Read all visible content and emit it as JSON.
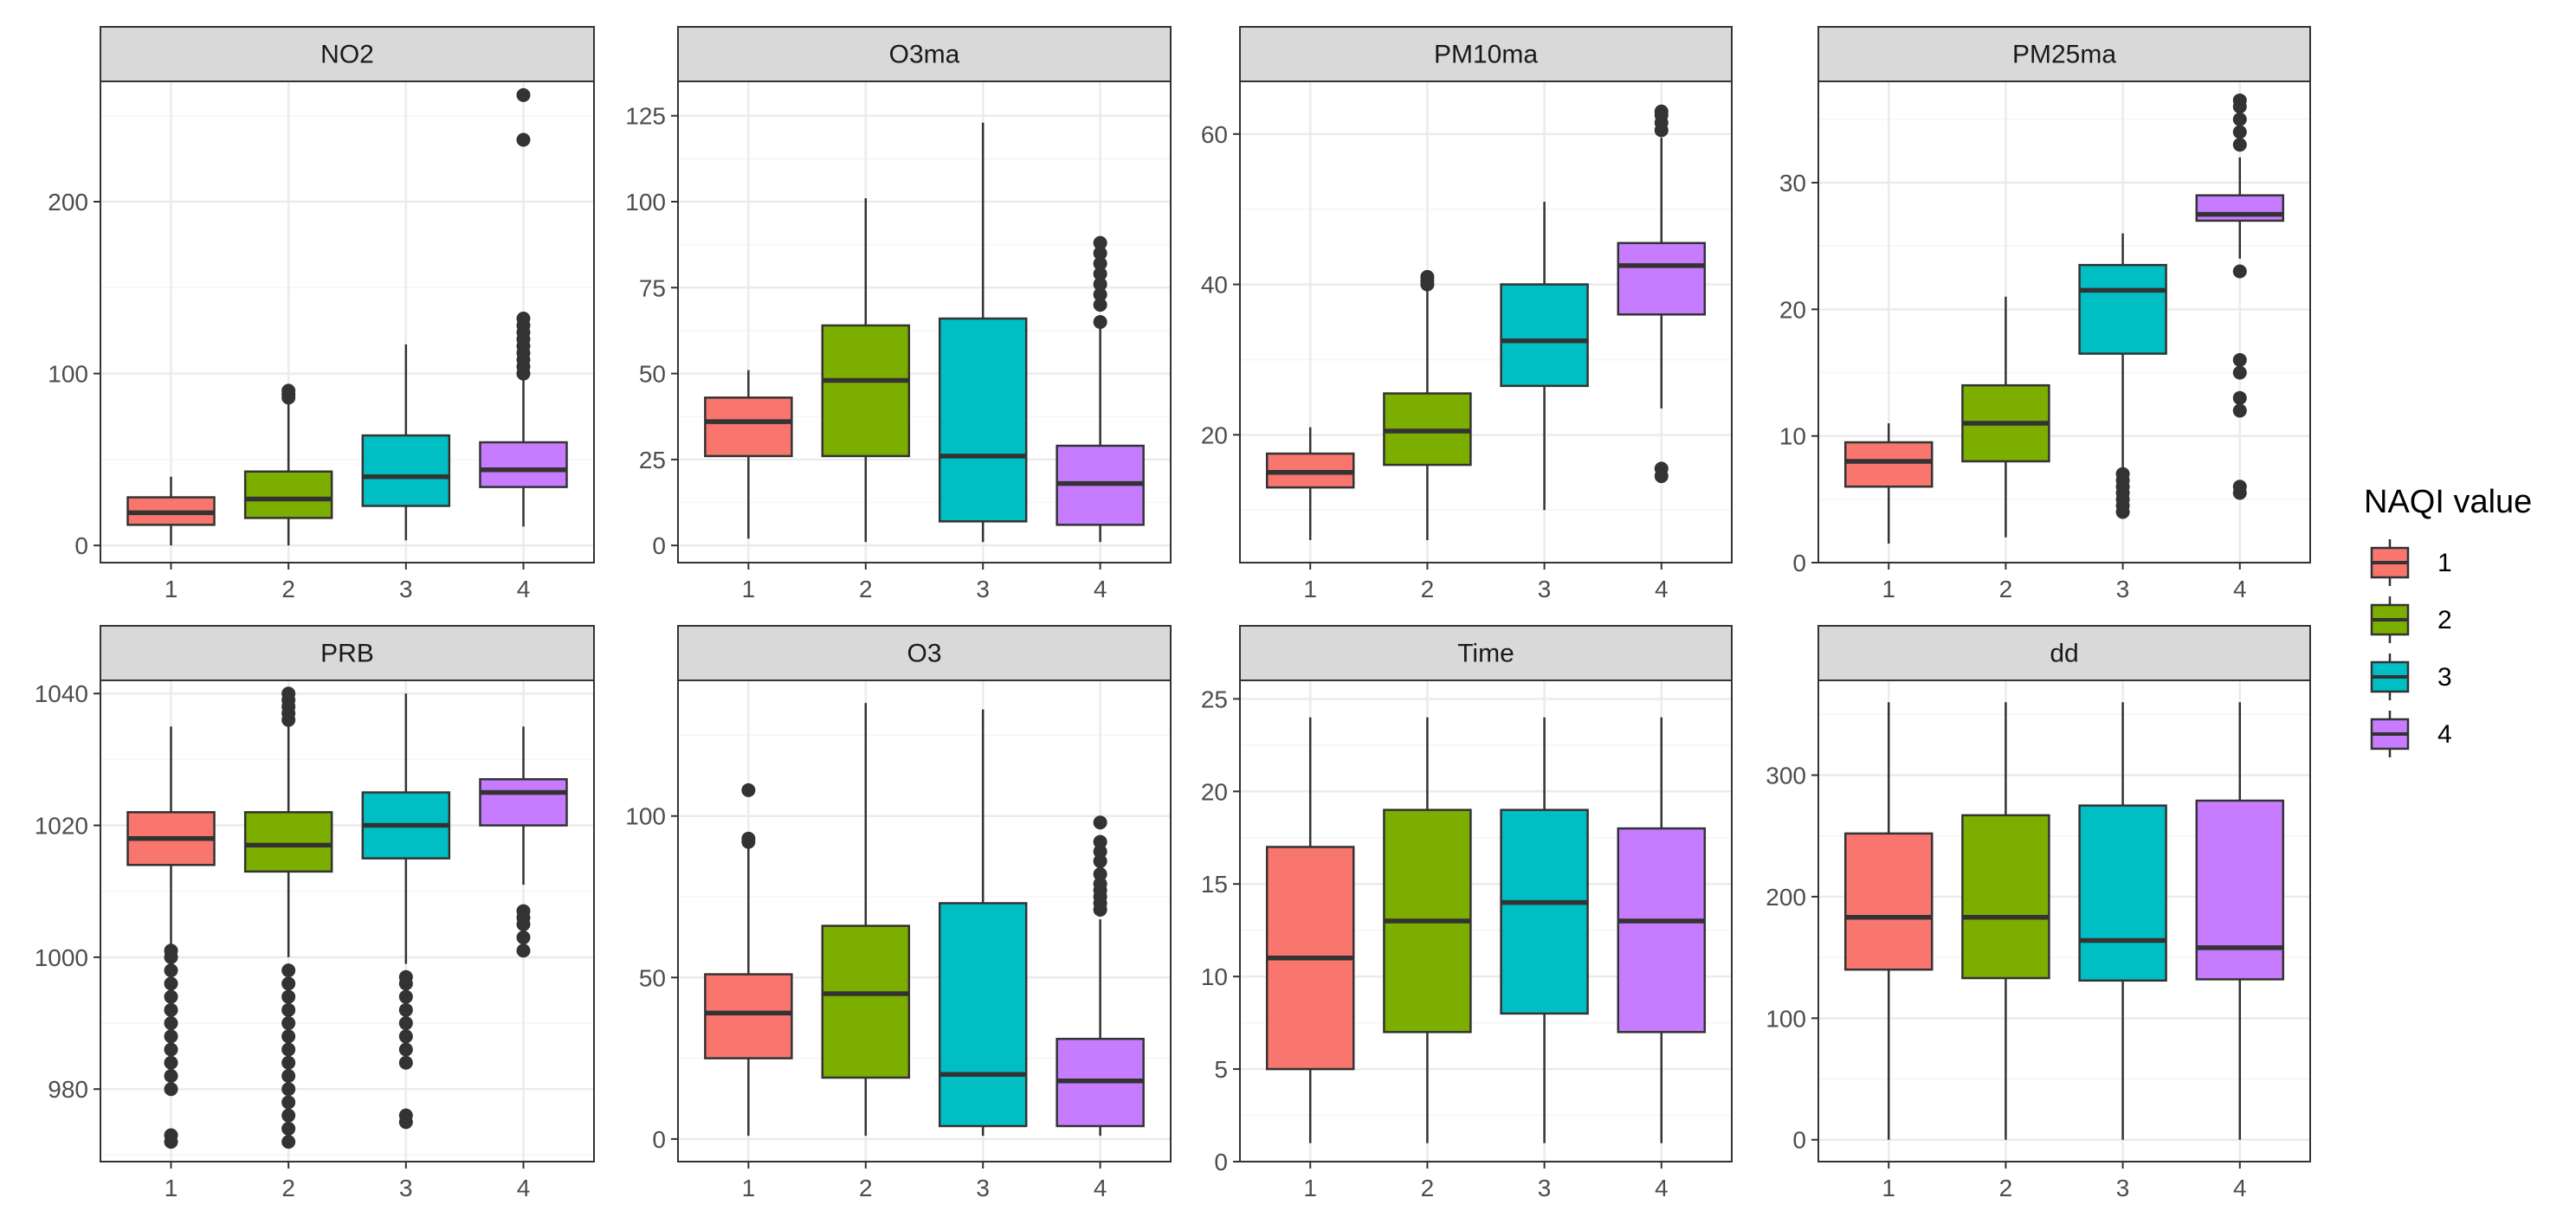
{
  "colors": {
    "background": "#ffffff",
    "panel_background": "#ffffff",
    "strip_background": "#d9d9d9",
    "border": "#333333",
    "grid_major": "#ebebeb",
    "grid_minor": "#f5f5f5",
    "tick_label": "#4d4d4d",
    "box_line": "#333333"
  },
  "chart_data": {
    "type": "boxplot",
    "layout": "facet_wrap",
    "nrow": 2,
    "ncol": 4,
    "scales": "free_y",
    "categories": [
      "1",
      "2",
      "3",
      "4"
    ],
    "legend": {
      "title": "NAQI value",
      "position": "right",
      "entries": [
        {
          "label": "1",
          "color": "#F8766D"
        },
        {
          "label": "2",
          "color": "#7CAE00"
        },
        {
          "label": "3",
          "color": "#00BFC4"
        },
        {
          "label": "4",
          "color": "#C77CFF"
        }
      ]
    },
    "panels": [
      {
        "name": "NO2",
        "ylim": [
          -10,
          270
        ],
        "yticks": [
          0,
          100,
          200
        ],
        "boxes": [
          {
            "category": "1",
            "min": 0,
            "q1": 12,
            "median": 19,
            "q3": 28,
            "max": 40,
            "outliers": []
          },
          {
            "category": "2",
            "min": 0,
            "q1": 16,
            "median": 27,
            "q3": 43,
            "max": 84,
            "outliers": [
              86,
              88,
              90
            ]
          },
          {
            "category": "3",
            "min": 3,
            "q1": 23,
            "median": 40,
            "q3": 64,
            "max": 117,
            "outliers": []
          },
          {
            "category": "4",
            "min": 11,
            "q1": 34,
            "median": 44,
            "q3": 60,
            "max": 98,
            "outliers": [
              100,
              104,
              108,
              112,
              116,
              120,
              124,
              128,
              132,
              236,
              262
            ]
          }
        ]
      },
      {
        "name": "O3ma",
        "ylim": [
          -5,
          135
        ],
        "yticks": [
          0,
          25,
          50,
          75,
          100,
          125
        ],
        "boxes": [
          {
            "category": "1",
            "min": 2,
            "q1": 26,
            "median": 36,
            "q3": 43,
            "max": 51,
            "outliers": []
          },
          {
            "category": "2",
            "min": 1,
            "q1": 26,
            "median": 48,
            "q3": 64,
            "max": 101,
            "outliers": []
          },
          {
            "category": "3",
            "min": 1,
            "q1": 7,
            "median": 26,
            "q3": 66,
            "max": 123,
            "outliers": []
          },
          {
            "category": "4",
            "min": 1,
            "q1": 6,
            "median": 18,
            "q3": 29,
            "max": 63,
            "outliers": [
              65,
              70,
              73,
              76,
              79,
              82,
              85,
              88
            ]
          }
        ]
      },
      {
        "name": "PM10ma",
        "ylim": [
          3,
          67
        ],
        "yticks": [
          20,
          40,
          60
        ],
        "boxes": [
          {
            "category": "1",
            "min": 6,
            "q1": 13,
            "median": 15,
            "q3": 17.5,
            "max": 21,
            "outliers": []
          },
          {
            "category": "2",
            "min": 6,
            "q1": 16,
            "median": 20.5,
            "q3": 25.5,
            "max": 39.5,
            "outliers": [
              40,
              40.5,
              41
            ]
          },
          {
            "category": "3",
            "min": 10,
            "q1": 26.5,
            "median": 32.5,
            "q3": 40,
            "max": 51,
            "outliers": []
          },
          {
            "category": "4",
            "min": 23.5,
            "q1": 36,
            "median": 42.5,
            "q3": 45.5,
            "max": 59.5,
            "outliers": [
              14.5,
              15.5,
              60.5,
              61.5,
              62.5,
              63
            ]
          }
        ]
      },
      {
        "name": "PM25ma",
        "ylim": [
          0,
          38
        ],
        "yticks": [
          0,
          10,
          20,
          30
        ],
        "boxes": [
          {
            "category": "1",
            "min": 1.5,
            "q1": 6,
            "median": 8,
            "q3": 9.5,
            "max": 11,
            "outliers": []
          },
          {
            "category": "2",
            "min": 2,
            "q1": 8,
            "median": 11,
            "q3": 14,
            "max": 21,
            "outliers": []
          },
          {
            "category": "3",
            "min": 7,
            "q1": 16.5,
            "median": 21.5,
            "q3": 23.5,
            "max": 26,
            "outliers": [
              4,
              4.5,
              5,
              5.5,
              6,
              6.5,
              7
            ]
          },
          {
            "category": "4",
            "min": 24,
            "q1": 27,
            "median": 27.5,
            "q3": 29,
            "max": 32,
            "outliers": [
              5.5,
              6,
              12,
              13,
              15,
              16,
              23,
              33,
              34,
              35,
              36,
              36.5
            ]
          }
        ]
      },
      {
        "name": "PRB",
        "ylim": [
          969,
          1042
        ],
        "yticks": [
          980,
          1000,
          1020,
          1040
        ],
        "boxes": [
          {
            "category": "1",
            "min": 1002,
            "q1": 1014,
            "median": 1018,
            "q3": 1022,
            "max": 1035,
            "outliers": [
              972,
              973,
              980,
              982,
              984,
              986,
              988,
              990,
              992,
              994,
              996,
              998,
              1000,
              1001
            ]
          },
          {
            "category": "2",
            "min": 1000,
            "q1": 1013,
            "median": 1017,
            "q3": 1022,
            "max": 1035,
            "outliers": [
              972,
              974,
              976,
              978,
              980,
              982,
              984,
              986,
              988,
              990,
              992,
              994,
              996,
              998,
              1036,
              1037,
              1038,
              1039,
              1040
            ]
          },
          {
            "category": "3",
            "min": 999,
            "q1": 1015,
            "median": 1020,
            "q3": 1025,
            "max": 1040,
            "outliers": [
              975,
              976,
              984,
              986,
              988,
              990,
              992,
              994,
              996,
              997
            ]
          },
          {
            "category": "4",
            "min": 1011,
            "q1": 1020,
            "median": 1025,
            "q3": 1027,
            "max": 1035,
            "outliers": [
              1001,
              1003,
              1005,
              1006,
              1007
            ]
          }
        ]
      },
      {
        "name": "O3",
        "ylim": [
          -7,
          142
        ],
        "yticks": [
          0,
          50,
          100
        ],
        "boxes": [
          {
            "category": "1",
            "min": 1,
            "q1": 25,
            "median": 39,
            "q3": 51,
            "max": 90,
            "outliers": [
              92,
              93,
              108
            ]
          },
          {
            "category": "2",
            "min": 1,
            "q1": 19,
            "median": 45,
            "q3": 66,
            "max": 135,
            "outliers": []
          },
          {
            "category": "3",
            "min": 1,
            "q1": 4,
            "median": 20,
            "q3": 73,
            "max": 133,
            "outliers": []
          },
          {
            "category": "4",
            "min": 1,
            "q1": 4,
            "median": 18,
            "q3": 31,
            "max": 68,
            "outliers": [
              71,
              73,
              75,
              77,
              79,
              82,
              86,
              89,
              92,
              98
            ]
          }
        ]
      },
      {
        "name": "Time",
        "ylim": [
          0,
          26
        ],
        "yticks": [
          0,
          5,
          10,
          15,
          20,
          25
        ],
        "boxes": [
          {
            "category": "1",
            "min": 1,
            "q1": 5,
            "median": 11,
            "q3": 17,
            "max": 24,
            "outliers": []
          },
          {
            "category": "2",
            "min": 1,
            "q1": 7,
            "median": 13,
            "q3": 19,
            "max": 24,
            "outliers": []
          },
          {
            "category": "3",
            "min": 1,
            "q1": 8,
            "median": 14,
            "q3": 19,
            "max": 24,
            "outliers": []
          },
          {
            "category": "4",
            "min": 1,
            "q1": 7,
            "median": 13,
            "q3": 18,
            "max": 24,
            "outliers": []
          }
        ]
      },
      {
        "name": "dd",
        "ylim": [
          -18,
          378
        ],
        "yticks": [
          0,
          100,
          200,
          300
        ],
        "boxes": [
          {
            "category": "1",
            "min": 0,
            "q1": 140,
            "median": 183,
            "q3": 252,
            "max": 360,
            "outliers": []
          },
          {
            "category": "2",
            "min": 0,
            "q1": 133,
            "median": 183,
            "q3": 267,
            "max": 360,
            "outliers": []
          },
          {
            "category": "3",
            "min": 0,
            "q1": 131,
            "median": 164,
            "q3": 275,
            "max": 360,
            "outliers": []
          },
          {
            "category": "4",
            "min": 0,
            "q1": 132,
            "median": 158,
            "q3": 279,
            "max": 360,
            "outliers": []
          }
        ]
      }
    ]
  }
}
